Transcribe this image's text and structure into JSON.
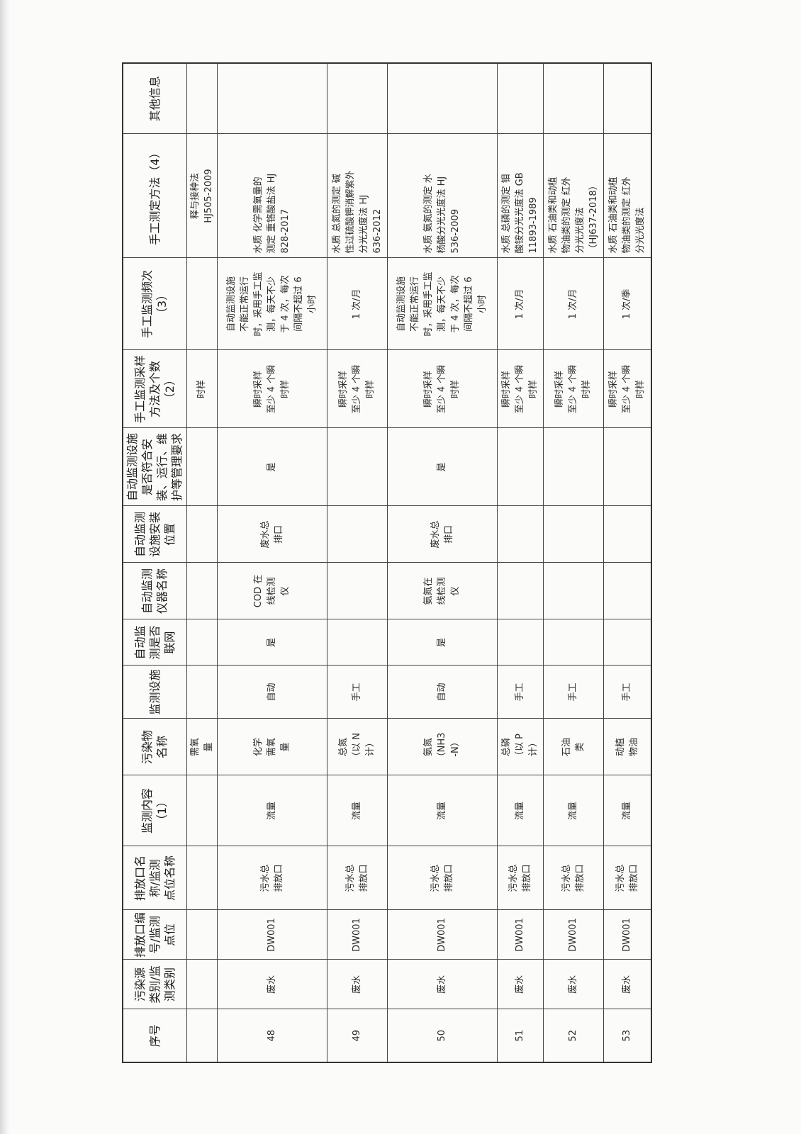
{
  "table": {
    "headers": [
      "序号",
      "污染源\n类别/监\n测类别",
      "排放口编\n号/监测\n点位",
      "排放口名\n称/监测\n点位名称",
      "监测内容（1）",
      "污染物\n名称",
      "监测设施",
      "自动监\n测是否\n联网",
      "自动监测\n仪器名称",
      "自动监测\n设施安装\n位置",
      "自动监测设施\n是否符合安\n装、运行、维\n护等管理要求",
      "手工监测采样\n方法及个数\n（2）",
      "手工监测频次（3）",
      "手工测定方法（4）",
      "其他信息"
    ],
    "rows": [
      [
        "",
        "",
        "",
        "",
        "",
        "需氧\n量",
        "",
        "",
        "",
        "",
        "",
        "时样",
        "",
        "释与接种法\nHJ505-2009",
        ""
      ],
      [
        "48",
        "废水",
        "DW001",
        "污水总\n排放口",
        "流量",
        "化学\n需氧\n量",
        "自动",
        "是",
        "COD 在\n线检测\n仪",
        "废水总\n排口",
        "是",
        "瞬时采样\n至少 4 个瞬\n时样",
        "自动监测设施\n不能正常运行\n时，采用手工监\n测，每天不少\n于 4 次，每次\n间隔不超过 6\n小时",
        "水质 化学需氧量的\n测定 重铬酸盐法 HJ\n828-2017",
        ""
      ],
      [
        "49",
        "废水",
        "DW001",
        "污水总\n排放口",
        "流量",
        "总氮\n（以 N\n计）",
        "手工",
        "",
        "",
        "",
        "",
        "瞬时采样\n至少 4 个瞬\n时样",
        "1 次/月",
        "水质 总氮的测定 碱\n性过硫酸钾消解紫外\n分光光度法 HJ\n636-2012",
        ""
      ],
      [
        "50",
        "废水",
        "DW001",
        "污水总\n排放口",
        "流量",
        "氨氮\n（NH3\n-N）",
        "自动",
        "是",
        "氨氮在\n线检测\n仪",
        "废水总\n排口",
        "是",
        "瞬时采样\n至少 4 个瞬\n时样",
        "自动监测设施\n不能正常运行\n时，采用手工监\n测，每天不少\n于 4 次，每次\n间隔不超过 6\n小时",
        "水质 氨氮的测定 水\n杨酸分光光度法 HJ\n536-2009",
        ""
      ],
      [
        "51",
        "废水",
        "DW001",
        "污水总\n排放口",
        "流量",
        "总磷\n（以 P\n计）",
        "手工",
        "",
        "",
        "",
        "",
        "瞬时采样\n至少 4 个瞬\n时样",
        "1 次/月",
        "水质 总磷的测定 钼\n酸铵分光光度法 GB\n11893-1989",
        ""
      ],
      [
        "52",
        "废水",
        "DW001",
        "污水总\n排放口",
        "流量",
        "石油\n类",
        "手工",
        "",
        "",
        "",
        "",
        "瞬时采样\n至少 4 个瞬\n时样",
        "1 次/月",
        "水质 石油类和动植\n物油类的测定 红外\n分光光度法\n（HJ637-2018）",
        ""
      ],
      [
        "53",
        "废水",
        "DW001",
        "污水总\n排放口",
        "流量",
        "动植\n物油",
        "手工",
        "",
        "",
        "",
        "",
        "瞬时采样\n至少 4 个瞬\n时样",
        "1 次/季",
        "水质 石油类和动植\n物油类的测定 红外\n分光光度法",
        ""
      ]
    ]
  }
}
